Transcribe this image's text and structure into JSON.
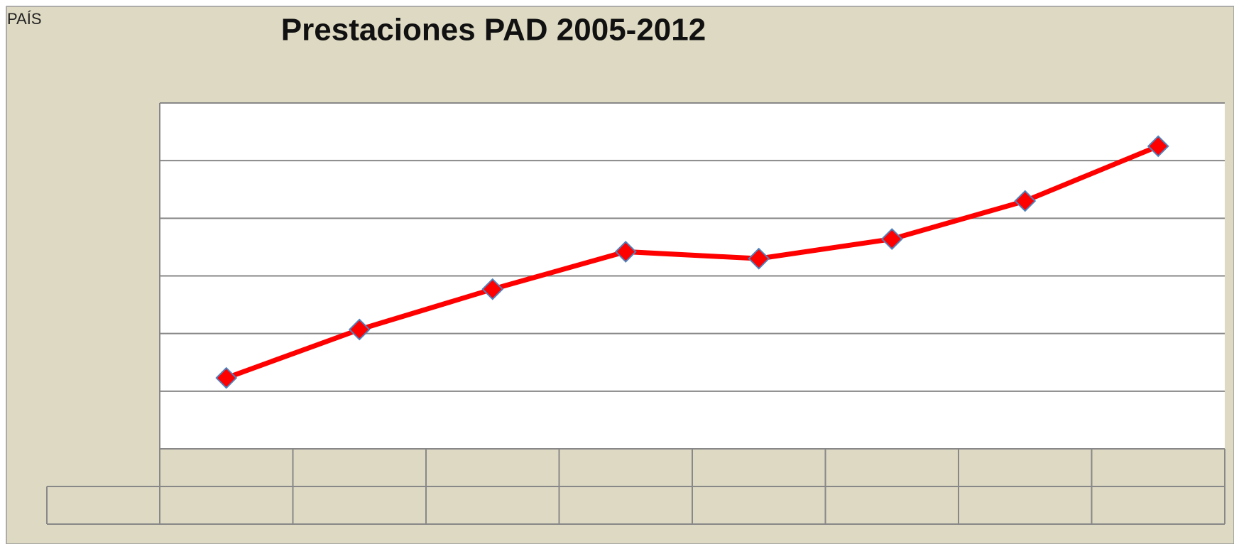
{
  "corner_label": "PAÍS",
  "chart_data": {
    "type": "line",
    "title": "Prestaciones PAD 2005-2012",
    "categories": [
      null,
      null,
      null,
      null,
      null,
      null,
      null,
      null
    ],
    "series": [
      {
        "color": "#ff0000",
        "values": [
          1.23,
          2.07,
          2.77,
          3.42,
          3.3,
          3.64,
          4.3,
          5.25
        ]
      }
    ],
    "ylim": [
      0,
      6
    ],
    "yticks": [
      0,
      1,
      2,
      3,
      4,
      5,
      6
    ],
    "grid": true
  }
}
